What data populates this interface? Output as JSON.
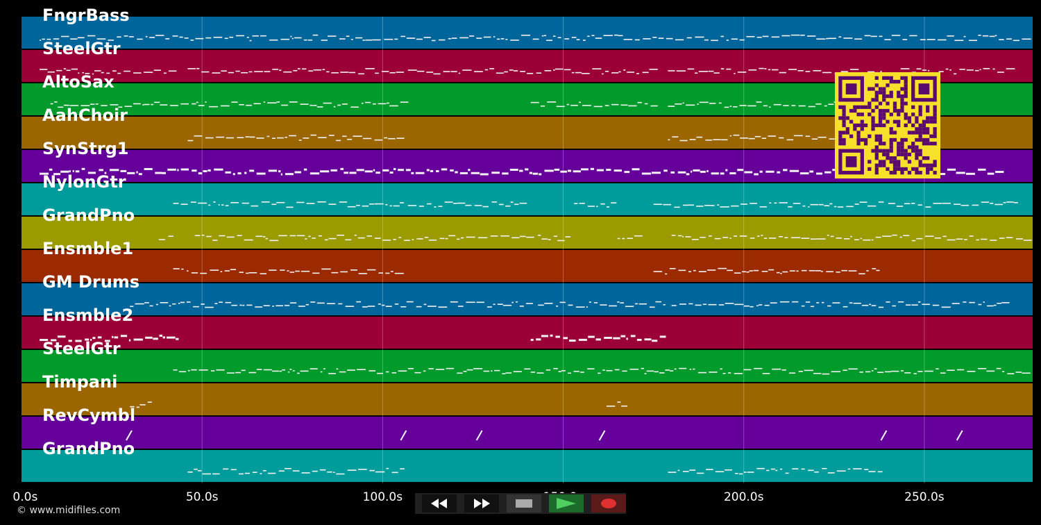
{
  "tracks": [
    {
      "name": "FngrBass",
      "color": "#00659b"
    },
    {
      "name": "SteelGtr",
      "color": "#9b0036"
    },
    {
      "name": "AltoSax",
      "color": "#009b2a"
    },
    {
      "name": "AahChoir",
      "color": "#9b6500"
    },
    {
      "name": "SynStrg1",
      "color": "#65009b"
    },
    {
      "name": "NylonGtr",
      "color": "#009b9b"
    },
    {
      "name": "GrandPno",
      "color": "#9b9b00"
    },
    {
      "name": "Ensmble1",
      "color": "#9b2a00"
    },
    {
      "name": "GM Drums",
      "color": "#00659b"
    },
    {
      "name": "Ensmble2",
      "color": "#9b0036"
    },
    {
      "name": "SteelGtr",
      "color": "#009b2a"
    },
    {
      "name": "Timpani",
      "color": "#9b6500"
    },
    {
      "name": "RevCymbl",
      "color": "#65009b"
    },
    {
      "name": "GrandPno",
      "color": "#009b9b"
    }
  ],
  "time_axis": {
    "labels": [
      "0.0s",
      "50.0s",
      "100.0s",
      "150.0s",
      "200.0s",
      "250.0s"
    ],
    "values": [
      0,
      50,
      100,
      150,
      200,
      250
    ],
    "max": 280
  },
  "transport": {
    "buttons": [
      {
        "name": "rewind-button",
        "icon": "rewind-icon"
      },
      {
        "name": "fast-forward-button",
        "icon": "fast-forward-icon"
      },
      {
        "name": "stop-button",
        "icon": "stop-icon"
      },
      {
        "name": "play-button",
        "icon": "play-icon"
      },
      {
        "name": "record-button",
        "icon": "record-icon"
      }
    ]
  },
  "qr_code": {
    "icon": "qr-code-icon",
    "color": "#f7e02a",
    "module_color": "#5a0a6e"
  },
  "copyright": "© www.midifiles.com"
}
